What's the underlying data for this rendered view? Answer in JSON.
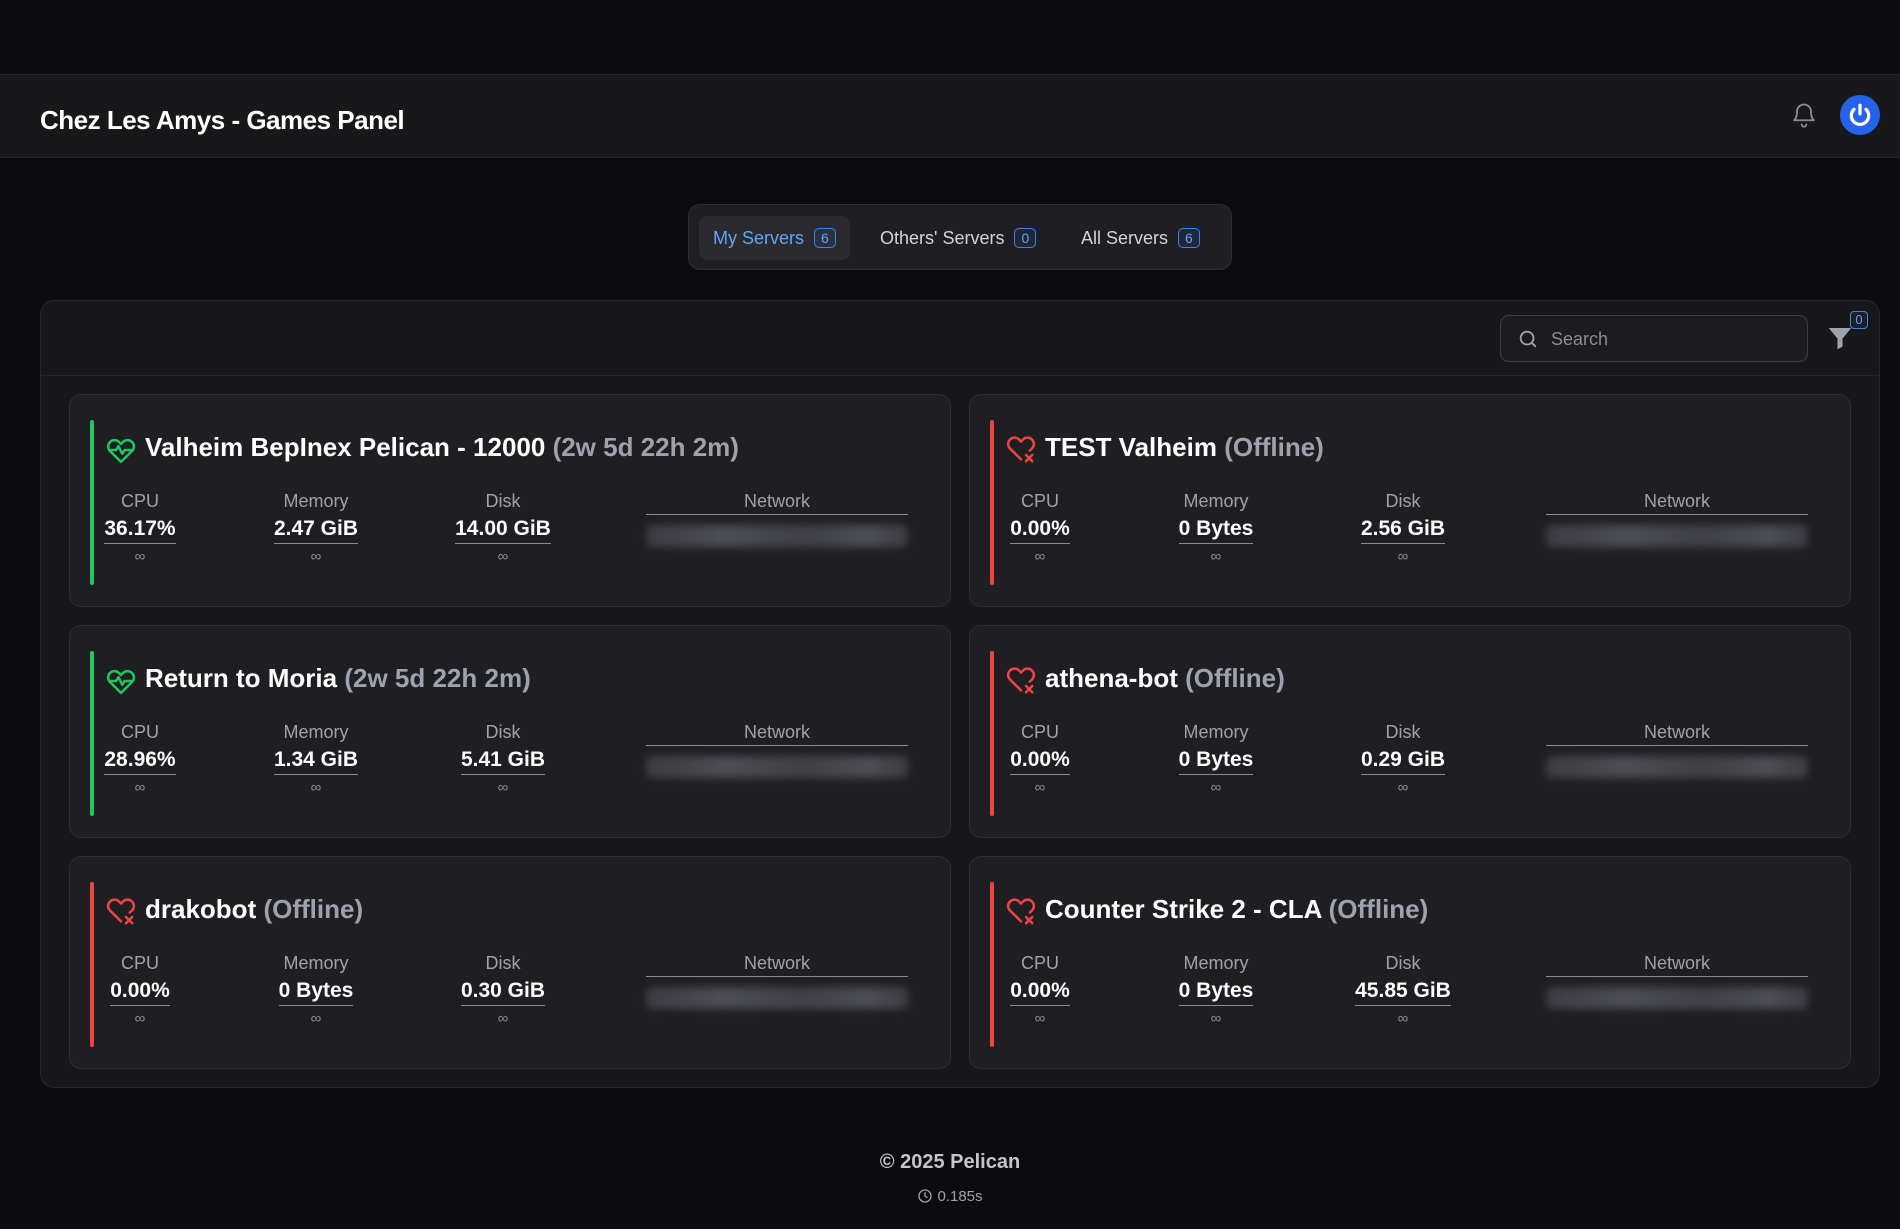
{
  "app": {
    "title": "Chez Les Amys - Games Panel"
  },
  "tabs": [
    {
      "label": "My Servers",
      "count": "6",
      "active": true
    },
    {
      "label": "Others' Servers",
      "count": "0",
      "active": false
    },
    {
      "label": "All Servers",
      "count": "6",
      "active": false
    }
  ],
  "search": {
    "placeholder": "Search",
    "value": ""
  },
  "filter": {
    "count": "0"
  },
  "colors": {
    "online": "#22c55e",
    "offline": "#ef4444",
    "accent": "#3b82f6"
  },
  "stat_labels": {
    "cpu": "CPU",
    "memory": "Memory",
    "disk": "Disk",
    "network": "Network"
  },
  "servers": [
    {
      "name": "Valheim BepInex Pelican - 12000",
      "status_text": "(2w 5d 22h 2m)",
      "status": "online",
      "status_icon": "heart-pulse-icon",
      "cpu": "36.17%",
      "cpu_limit": "∞",
      "memory": "2.47 GiB",
      "memory_limit": "∞",
      "disk": "14.00 GiB",
      "disk_limit": "∞"
    },
    {
      "name": "TEST Valheim",
      "status_text": "(Offline)",
      "status": "offline",
      "status_icon": "heart-x-icon",
      "cpu": "0.00%",
      "cpu_limit": "∞",
      "memory": "0 Bytes",
      "memory_limit": "∞",
      "disk": "2.56 GiB",
      "disk_limit": "∞"
    },
    {
      "name": "Return to Moria",
      "status_text": "(2w 5d 22h 2m)",
      "status": "online",
      "status_icon": "heart-pulse-icon",
      "cpu": "28.96%",
      "cpu_limit": "∞",
      "memory": "1.34 GiB",
      "memory_limit": "∞",
      "disk": "5.41 GiB",
      "disk_limit": "∞"
    },
    {
      "name": "athena-bot",
      "status_text": "(Offline)",
      "status": "offline",
      "status_icon": "heart-x-icon",
      "cpu": "0.00%",
      "cpu_limit": "∞",
      "memory": "0 Bytes",
      "memory_limit": "∞",
      "disk": "0.29 GiB",
      "disk_limit": "∞"
    },
    {
      "name": "drakobot",
      "status_text": "(Offline)",
      "status": "offline",
      "status_icon": "heart-x-icon",
      "cpu": "0.00%",
      "cpu_limit": "∞",
      "memory": "0 Bytes",
      "memory_limit": "∞",
      "disk": "0.30 GiB",
      "disk_limit": "∞"
    },
    {
      "name": "Counter Strike 2 - CLA",
      "status_text": "(Offline)",
      "status": "offline",
      "status_icon": "heart-x-icon",
      "cpu": "0.00%",
      "cpu_limit": "∞",
      "memory": "0 Bytes",
      "memory_limit": "∞",
      "disk": "45.85 GiB",
      "disk_limit": "∞"
    }
  ],
  "footer": {
    "copyright": "© 2025 Pelican",
    "render_time": "0.185s"
  }
}
